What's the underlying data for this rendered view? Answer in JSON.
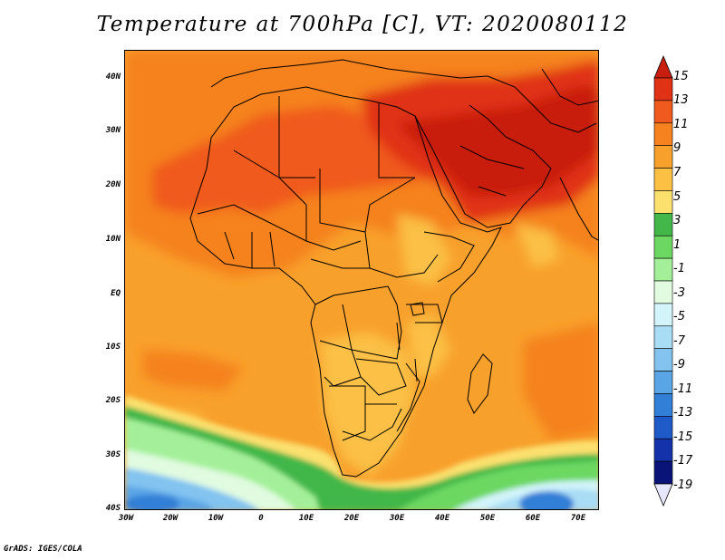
{
  "title": "Temperature at 700hPa [C], VT: 2020080112",
  "credit": "GrADS: IGES/COLA",
  "map": {
    "projection": "latlon",
    "region": "Africa and Arabian Peninsula",
    "lon_range": [
      -30,
      75
    ],
    "lat_range": [
      -40,
      45
    ],
    "latitude_labels": [
      "40N",
      "30N",
      "20N",
      "10N",
      "EQ",
      "10S",
      "20S",
      "30S",
      "40S"
    ],
    "longitude_labels": [
      "30W",
      "20W",
      "10W",
      "0",
      "10E",
      "20E",
      "30E",
      "40E",
      "50E",
      "60E",
      "70E"
    ],
    "boundaries": "country outlines"
  },
  "colorbar": {
    "orientation": "vertical",
    "labels": [
      "15",
      "13",
      "11",
      "9",
      "7",
      "5",
      "3",
      "1",
      "-1",
      "-3",
      "-5",
      "-7",
      "-9",
      "-11",
      "-13",
      "-15",
      "-17",
      "-19"
    ],
    "colors": [
      "#c81e0f",
      "#e03214",
      "#f05a1e",
      "#f5821e",
      "#f8a02c",
      "#fbc044",
      "#fbe06e",
      "#43b749",
      "#6cd862",
      "#a4f09a",
      "#e0fbe0",
      "#d2f4fa",
      "#a9dcf5",
      "#82c3f0",
      "#5aa5e6",
      "#327fd7",
      "#1e5ac8",
      "#1432aa",
      "#0a1478",
      "#e6e6ff"
    ]
  }
}
